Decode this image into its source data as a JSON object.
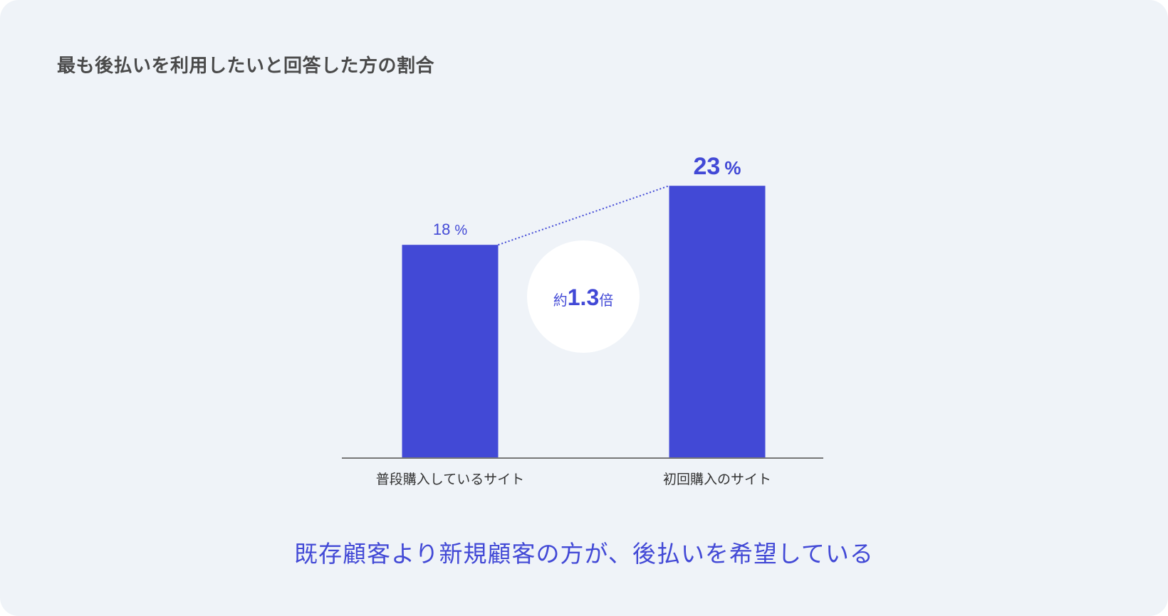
{
  "title": "最も後払いを利用したいと回答した方の割合",
  "conclusion": "既存顧客より新規顧客の方が、後払いを希望している",
  "colors": {
    "bar": "#4249d6",
    "label": "#4249d6",
    "axis": "#777777",
    "card_bg": "#eff3f8"
  },
  "chart_data": {
    "type": "bar",
    "categories": [
      "普段購入しているサイト",
      "初回購入のサイト"
    ],
    "values": [
      18,
      23
    ],
    "value_labels": [
      {
        "number": "18",
        "unit": "%"
      },
      {
        "number": "23",
        "unit": "%"
      }
    ],
    "ylim": [
      0,
      25
    ],
    "grid": false,
    "annotation": {
      "prefix": "約",
      "number": "1.3",
      "suffix": "倍"
    }
  }
}
